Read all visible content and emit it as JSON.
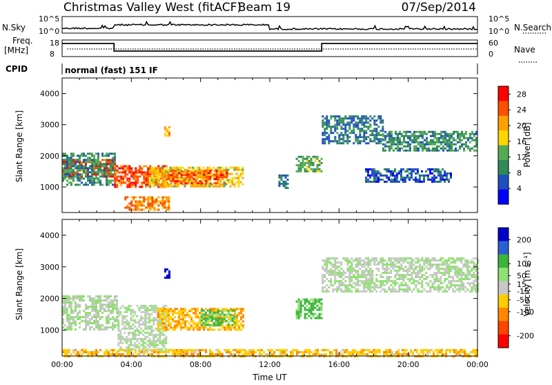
{
  "header": {
    "title": "Christmas Valley West (fitACF)",
    "beam": "Beam 19",
    "date": "07/Sep/2014"
  },
  "noise_panel": {
    "left_label": "N.Sky",
    "left_ticks": [
      "10^5",
      "10^0"
    ],
    "right_label": "N.Search",
    "right_ticks": [
      "10^5",
      "10^0"
    ]
  },
  "freq_panel": {
    "left_label": "Freq.",
    "left_unit": "[MHz]",
    "left_ticks": [
      "18",
      "8"
    ],
    "right_label": "Nave",
    "right_ticks": [
      "60",
      "0"
    ]
  },
  "cpid": {
    "label": "CPID",
    "value": "normal (fast) 151 IF"
  },
  "colors": {
    "power_scale": [
      "#0000ff",
      "#1f4fbf",
      "#2e8b57",
      "#55aa55",
      "#ffd700",
      "#ffa000",
      "#ff5000",
      "#ff0000"
    ],
    "velocity_scale": [
      "#0000cc",
      "#2a5fd0",
      "#3cb43c",
      "#90e070",
      "#c8c8c8",
      "#ffcc00",
      "#ff8800",
      "#ff4400",
      "#ff0000"
    ],
    "ground_scatter": "#a0a0a0"
  },
  "chart_data": [
    {
      "type": "heatmap",
      "panel": "power",
      "ylabel": "Slant Range [km]",
      "ylim": [
        180,
        4500
      ],
      "yticks": [
        1000,
        2000,
        3000,
        4000
      ],
      "xlim": [
        0,
        24
      ],
      "colorbar": {
        "label": "Power [dB]",
        "ticks": [
          4,
          8,
          12,
          16,
          20,
          24,
          28
        ],
        "range": [
          0,
          30
        ]
      },
      "regions": [
        {
          "t": [
            0,
            3
          ],
          "r": [
            1350,
            1900
          ],
          "level": 26
        },
        {
          "t": [
            0,
            3
          ],
          "r": [
            1100,
            2100
          ],
          "level": 10
        },
        {
          "t": [
            3,
            6
          ],
          "r": [
            1000,
            1700
          ],
          "level": 25
        },
        {
          "t": [
            3.6,
            6.2
          ],
          "r": [
            300,
            700
          ],
          "level": 22
        },
        {
          "t": [
            5,
            10.5
          ],
          "r": [
            1000,
            1650
          ],
          "level": 18
        },
        {
          "t": [
            6,
            9.5
          ],
          "r": [
            1150,
            1550
          ],
          "level": 24
        },
        {
          "t": [
            12.5,
            13
          ],
          "r": [
            1000,
            1400
          ],
          "level": 8
        },
        {
          "t": [
            13.5,
            15
          ],
          "r": [
            1500,
            2000
          ],
          "level": 12
        },
        {
          "t": [
            15,
            18.5
          ],
          "r": [
            2400,
            3300
          ],
          "level": 8
        },
        {
          "t": [
            18.5,
            24
          ],
          "r": [
            2200,
            2800
          ],
          "level": 10
        },
        {
          "t": [
            17.5,
            22.5
          ],
          "r": [
            1200,
            1600
          ],
          "level": 6
        },
        {
          "t": [
            5.9,
            6.2
          ],
          "r": [
            2650,
            2950
          ],
          "level": 20
        }
      ]
    },
    {
      "type": "heatmap",
      "panel": "velocity",
      "ylabel": "Slant Range [km]",
      "xlabel": "Time UT",
      "xticks": [
        "00:00",
        "04:00",
        "08:00",
        "12:00",
        "16:00",
        "20:00",
        "00:00"
      ],
      "ylim": [
        180,
        4500
      ],
      "yticks": [
        1000,
        2000,
        3000,
        4000
      ],
      "xlim": [
        0,
        24
      ],
      "colorbar": {
        "label": "Velocity [m s⁻¹]",
        "ticks": [
          200,
          100,
          50,
          15,
          -15,
          -50,
          -100,
          -200
        ],
        "range": [
          -250,
          250
        ]
      },
      "regions": [
        {
          "t": [
            0,
            3.2
          ],
          "r": [
            1000,
            2100
          ],
          "level": 0
        },
        {
          "t": [
            3.2,
            6
          ],
          "r": [
            300,
            1800
          ],
          "level": 0
        },
        {
          "t": [
            5.5,
            10.5
          ],
          "r": [
            1000,
            1700
          ],
          "level": -70
        },
        {
          "t": [
            8,
            10
          ],
          "r": [
            1150,
            1650
          ],
          "level": 40
        },
        {
          "t": [
            0,
            24
          ],
          "r": [
            180,
            400
          ],
          "level": -60
        },
        {
          "t": [
            13.5,
            15
          ],
          "r": [
            1400,
            2000
          ],
          "level": 45
        },
        {
          "t": [
            15,
            24
          ],
          "r": [
            2200,
            3300
          ],
          "level": 0
        },
        {
          "t": [
            5.9,
            6.2
          ],
          "r": [
            2650,
            2950
          ],
          "level": 220
        }
      ]
    }
  ]
}
